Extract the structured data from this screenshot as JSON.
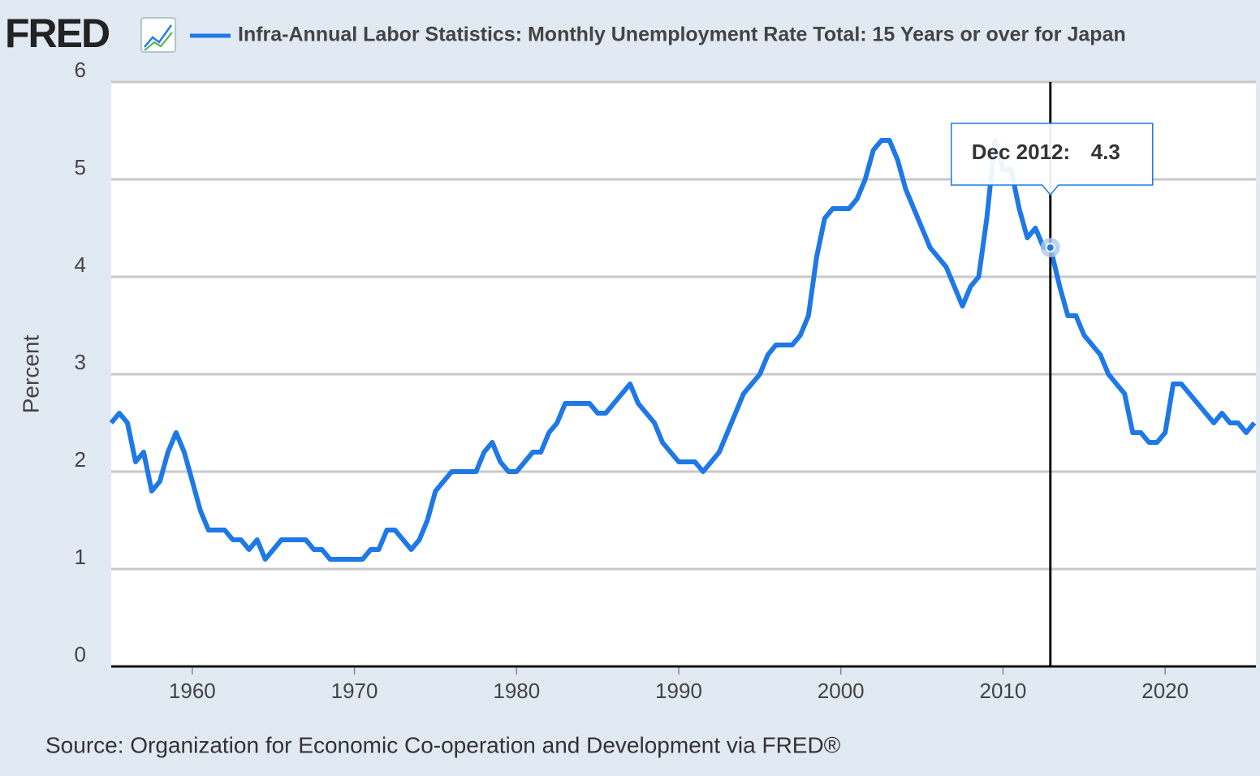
{
  "logo": "FRED",
  "source": "Source: Organization for Economic Co-operation and Development via FRED®",
  "chart_data": {
    "type": "line",
    "ylabel": "Percent",
    "x": [
      1955,
      1955.5,
      1956,
      1956.5,
      1957,
      1957.5,
      1958,
      1958.5,
      1959,
      1959.5,
      1960,
      1960.5,
      1961,
      1961.5,
      1962,
      1962.5,
      1963,
      1963.5,
      1964,
      1964.5,
      1965,
      1965.5,
      1966,
      1966.5,
      1967,
      1967.5,
      1968,
      1968.5,
      1969,
      1969.5,
      1970,
      1970.5,
      1971,
      1971.5,
      1972,
      1972.5,
      1973,
      1973.5,
      1974,
      1974.5,
      1975,
      1975.5,
      1976,
      1976.5,
      1977,
      1977.5,
      1978,
      1978.5,
      1979,
      1979.5,
      1980,
      1980.5,
      1981,
      1981.5,
      1982,
      1982.5,
      1983,
      1983.5,
      1984,
      1984.5,
      1985,
      1985.5,
      1986,
      1986.5,
      1987,
      1987.5,
      1988,
      1988.5,
      1989,
      1989.5,
      1990,
      1990.5,
      1991,
      1991.5,
      1992,
      1992.5,
      1993,
      1993.5,
      1994,
      1994.5,
      1995,
      1995.5,
      1996,
      1996.5,
      1997,
      1997.5,
      1998,
      1998.5,
      1999,
      1999.5,
      2000,
      2000.5,
      2001,
      2001.5,
      2002,
      2002.5,
      2003,
      2003.5,
      2004,
      2004.5,
      2005,
      2005.5,
      2006,
      2006.5,
      2007,
      2007.5,
      2008,
      2008.5,
      2009,
      2009.5,
      2010,
      2010.5,
      2011,
      2011.5,
      2012,
      2012.5,
      2012.92,
      2013.5,
      2014,
      2014.5,
      2015,
      2015.5,
      2016,
      2016.5,
      2017,
      2017.5,
      2018,
      2018.5,
      2019,
      2019.5,
      2020,
      2020.5,
      2021,
      2021.5,
      2022,
      2022.5,
      2023,
      2023.5,
      2024,
      2024.5,
      2025,
      2025.5
    ],
    "series": [
      {
        "name": "Infra-Annual Labor Statistics: Monthly Unemployment Rate Total: 15 Years or over for Japan",
        "color": "#1e78e6",
        "values": [
          2.5,
          2.6,
          2.5,
          2.1,
          2.2,
          1.8,
          1.9,
          2.2,
          2.4,
          2.2,
          1.9,
          1.6,
          1.4,
          1.4,
          1.4,
          1.3,
          1.3,
          1.2,
          1.3,
          1.1,
          1.2,
          1.3,
          1.3,
          1.3,
          1.3,
          1.2,
          1.2,
          1.1,
          1.1,
          1.1,
          1.1,
          1.1,
          1.2,
          1.2,
          1.4,
          1.4,
          1.3,
          1.2,
          1.3,
          1.5,
          1.8,
          1.9,
          2.0,
          2.0,
          2.0,
          2.0,
          2.2,
          2.3,
          2.1,
          2.0,
          2.0,
          2.1,
          2.2,
          2.2,
          2.4,
          2.5,
          2.7,
          2.7,
          2.7,
          2.7,
          2.6,
          2.6,
          2.7,
          2.8,
          2.9,
          2.7,
          2.6,
          2.5,
          2.3,
          2.2,
          2.1,
          2.1,
          2.1,
          2.0,
          2.1,
          2.2,
          2.4,
          2.6,
          2.8,
          2.9,
          3.0,
          3.2,
          3.3,
          3.3,
          3.3,
          3.4,
          3.6,
          4.2,
          4.6,
          4.7,
          4.7,
          4.7,
          4.8,
          5.0,
          5.3,
          5.4,
          5.4,
          5.2,
          4.9,
          4.7,
          4.5,
          4.3,
          4.2,
          4.1,
          3.9,
          3.7,
          3.9,
          4.0,
          4.6,
          5.4,
          5.1,
          5.1,
          4.7,
          4.4,
          4.5,
          4.3,
          4.3,
          3.9,
          3.6,
          3.6,
          3.4,
          3.3,
          3.2,
          3.0,
          2.9,
          2.8,
          2.4,
          2.4,
          2.3,
          2.3,
          2.4,
          2.9,
          2.9,
          2.8,
          2.7,
          2.6,
          2.5,
          2.6,
          2.5,
          2.5,
          2.4,
          2.5
        ]
      }
    ],
    "xlim": [
      1955,
      2025.6
    ],
    "xticks": [
      1960,
      1970,
      1980,
      1990,
      2000,
      2010,
      2020
    ],
    "ylim": [
      0,
      6
    ],
    "yticks": [
      0,
      1,
      2,
      3,
      4,
      5,
      6
    ],
    "grid": true,
    "tooltip": {
      "x": 2012.92,
      "label": "Dec 2012:",
      "value": 4.3
    }
  }
}
